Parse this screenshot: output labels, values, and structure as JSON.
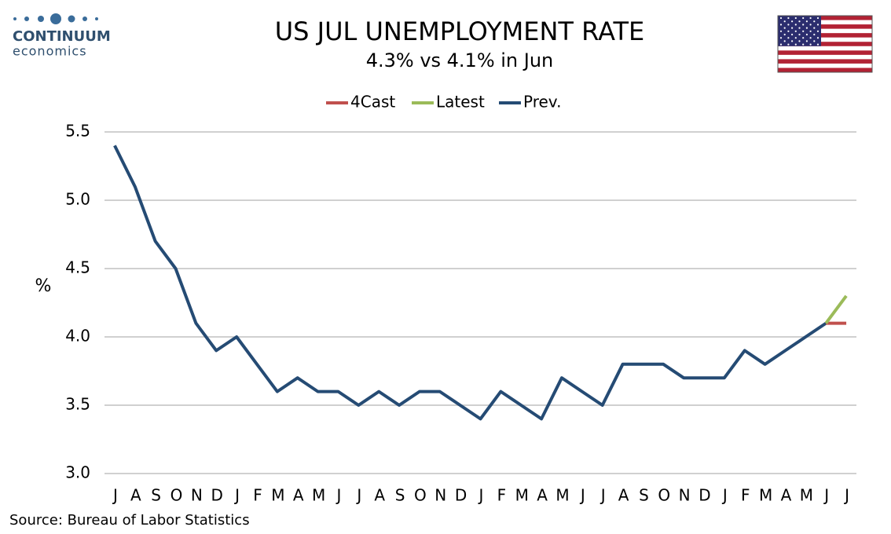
{
  "chart_data": {
    "type": "line",
    "title": "US JUL UNEMPLOYMENT RATE",
    "subtitle": "4.3% vs 4.1% in Jun",
    "brand": "CONTINUUM",
    "brand_sub": "economics",
    "ylabel": "%",
    "source": "Source: Bureau of Labor Statistics",
    "categories": [
      "J",
      "A",
      "S",
      "O",
      "N",
      "D",
      "J",
      "F",
      "M",
      "A",
      "M",
      "J",
      "J",
      "A",
      "S",
      "O",
      "N",
      "D",
      "J",
      "F",
      "M",
      "A",
      "M",
      "J",
      "J",
      "A",
      "S",
      "O",
      "N",
      "D",
      "J",
      "F",
      "M",
      "A",
      "M",
      "J",
      "J"
    ],
    "series": [
      {
        "name": "4Cast",
        "color": "#c0504d",
        "values": [
          null,
          null,
          null,
          null,
          null,
          null,
          null,
          null,
          null,
          null,
          null,
          null,
          null,
          null,
          null,
          null,
          null,
          null,
          null,
          null,
          null,
          null,
          null,
          null,
          null,
          null,
          null,
          null,
          null,
          null,
          null,
          null,
          null,
          null,
          null,
          4.1,
          4.1
        ]
      },
      {
        "name": "Latest",
        "color": "#9bbb59",
        "values": [
          null,
          null,
          null,
          null,
          null,
          null,
          null,
          null,
          null,
          null,
          null,
          null,
          null,
          null,
          null,
          null,
          null,
          null,
          null,
          null,
          null,
          null,
          null,
          null,
          null,
          null,
          null,
          null,
          null,
          null,
          null,
          null,
          null,
          null,
          null,
          4.1,
          4.3
        ]
      },
      {
        "name": "Prev.",
        "color": "#254b74",
        "values": [
          5.4,
          5.1,
          4.7,
          4.5,
          4.1,
          3.9,
          4.0,
          3.8,
          3.6,
          3.7,
          3.6,
          3.6,
          3.5,
          3.6,
          3.5,
          3.6,
          3.6,
          3.5,
          3.4,
          3.6,
          3.5,
          3.4,
          3.7,
          3.6,
          3.5,
          3.8,
          3.8,
          3.8,
          3.7,
          3.7,
          3.7,
          3.9,
          3.8,
          3.9,
          4.0,
          4.1,
          null
        ]
      }
    ],
    "ylim": [
      3,
      5.5
    ],
    "yticks": [
      {
        "value": 3,
        "label": "3.0"
      },
      3.5,
      {
        "value": 4,
        "label": "4.0"
      },
      4.5,
      {
        "value": 5,
        "label": "5.0"
      },
      5.5
    ],
    "grid": true,
    "legend": "top"
  }
}
